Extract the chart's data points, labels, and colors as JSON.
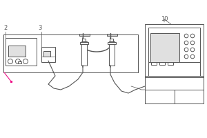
{
  "bg_color": "#ffffff",
  "line_color": "#555555",
  "line_width": 0.7,
  "label_2": "2",
  "label_3": "3",
  "label_10": "10",
  "pink_color": "#ee1188",
  "fig_width": 3.0,
  "fig_height": 2.0,
  "dpi": 100
}
